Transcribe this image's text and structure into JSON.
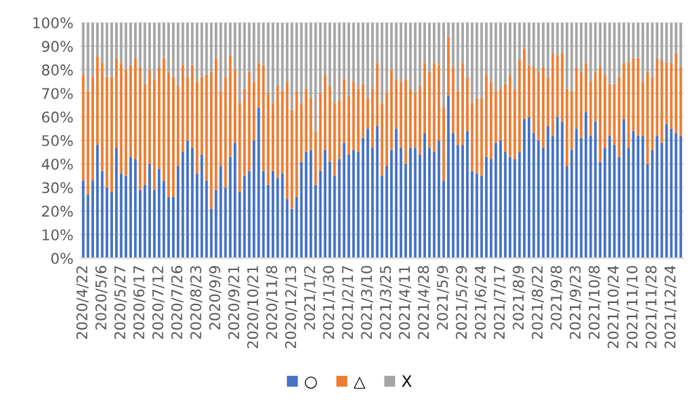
{
  "chart_data": {
    "type": "bar",
    "stacked": true,
    "categories": [
      "2020/4/22",
      null,
      null,
      null,
      "2020/5/6",
      null,
      null,
      null,
      "2020/5/27",
      null,
      null,
      null,
      "2020/6/17",
      null,
      null,
      null,
      "2020/7/12",
      null,
      null,
      null,
      "2020/7/26",
      null,
      null,
      null,
      "2020/8/23",
      null,
      null,
      null,
      "2020/9/9",
      null,
      null,
      null,
      "2020/9/21",
      null,
      null,
      null,
      "2020/10/21",
      null,
      null,
      null,
      "2020/11/8",
      null,
      null,
      null,
      "2020/12/13",
      null,
      null,
      null,
      "2021/1/2",
      null,
      null,
      null,
      "2021/1/30",
      null,
      null,
      null,
      "2021/2/17",
      null,
      null,
      null,
      "2021/3/10",
      null,
      null,
      null,
      "2021/3/25",
      null,
      null,
      null,
      "2021/4/11",
      null,
      null,
      null,
      "2021/4/28",
      null,
      null,
      null,
      "2021/5/9",
      null,
      null,
      null,
      "2021/5/29",
      null,
      null,
      null,
      "2021/6/24",
      null,
      null,
      null,
      "2021/7/17",
      null,
      null,
      null,
      "2021/8/9",
      null,
      null,
      null,
      "2021/8/22",
      null,
      null,
      null,
      "2021/9/8",
      null,
      null,
      null,
      "2021/9/23",
      null,
      null,
      null,
      "2021/10/8",
      null,
      null,
      null,
      "2021/10/24",
      null,
      null,
      null,
      "2021/11/10",
      null,
      null,
      null,
      "2021/11/28",
      null,
      null,
      null,
      "2021/12/24",
      null,
      null
    ],
    "series": [
      {
        "name": "○",
        "color": "#4472c4",
        "values": [
          33,
          27,
          33,
          48,
          37,
          30,
          28,
          47,
          36,
          35,
          43,
          42,
          29,
          31,
          40,
          29,
          38,
          33,
          26,
          26,
          39,
          45,
          50,
          47,
          36,
          44,
          33,
          21,
          29,
          39,
          30,
          43,
          49,
          28,
          35,
          37,
          50,
          64,
          37,
          31,
          37,
          34,
          36,
          25,
          21,
          26,
          41,
          45,
          46,
          31,
          37,
          46,
          41,
          35,
          42,
          49,
          44,
          46,
          45,
          51,
          55,
          47,
          56,
          35,
          39,
          46,
          55,
          47,
          40,
          47,
          47,
          44,
          53,
          47,
          45,
          50,
          33,
          69,
          53,
          48,
          48,
          54,
          37,
          36,
          35,
          43,
          42,
          49,
          50,
          45,
          43,
          42,
          45,
          59,
          60,
          53,
          50,
          47,
          56,
          52,
          60,
          58,
          39,
          46,
          55,
          51,
          62,
          52,
          58,
          41,
          47,
          52,
          48,
          43,
          59,
          47,
          54,
          52,
          52,
          40,
          46,
          52,
          49,
          57,
          55,
          53,
          52
        ]
      },
      {
        "name": "△",
        "color": "#ed7d31",
        "values": [
          45,
          44,
          44,
          38,
          46,
          47,
          49,
          38,
          47,
          45,
          39,
          43,
          52,
          43,
          40,
          47,
          43,
          52,
          53,
          51,
          34,
          37,
          27,
          35,
          39,
          33,
          45,
          58,
          56,
          32,
          47,
          43,
          31,
          38,
          37,
          42,
          25,
          19,
          45,
          39,
          29,
          39,
          35,
          50,
          42,
          45,
          25,
          27,
          22,
          23,
          33,
          32,
          32,
          31,
          25,
          27,
          25,
          29,
          27,
          23,
          13,
          25,
          27,
          31,
          31,
          34,
          21,
          28,
          36,
          25,
          23,
          29,
          30,
          32,
          38,
          32,
          31,
          25,
          28,
          23,
          35,
          23,
          29,
          32,
          33,
          35,
          33,
          22,
          22,
          29,
          35,
          30,
          39,
          30,
          22,
          28,
          29,
          34,
          21,
          35,
          26,
          29,
          33,
          25,
          26,
          28,
          21,
          23,
          21,
          40,
          31,
          22,
          26,
          34,
          24,
          36,
          31,
          33,
          23,
          39,
          31,
          33,
          35,
          26,
          28,
          34,
          29
        ]
      },
      {
        "name": "X",
        "color": "#a5a5a5",
        "values": [
          22,
          29,
          23,
          14,
          17,
          23,
          23,
          15,
          17,
          20,
          18,
          15,
          19,
          26,
          20,
          24,
          19,
          15,
          21,
          23,
          27,
          18,
          23,
          18,
          25,
          23,
          22,
          21,
          15,
          29,
          23,
          14,
          20,
          34,
          28,
          21,
          25,
          17,
          18,
          30,
          34,
          27,
          29,
          25,
          37,
          29,
          34,
          28,
          32,
          46,
          30,
          22,
          27,
          34,
          33,
          24,
          31,
          25,
          28,
          26,
          32,
          28,
          17,
          34,
          30,
          20,
          24,
          25,
          24,
          28,
          30,
          27,
          17,
          21,
          17,
          18,
          36,
          6,
          19,
          29,
          17,
          23,
          34,
          32,
          32,
          22,
          25,
          29,
          28,
          26,
          22,
          28,
          16,
          11,
          18,
          19,
          21,
          19,
          23,
          13,
          14,
          13,
          28,
          29,
          19,
          21,
          17,
          25,
          21,
          19,
          22,
          26,
          26,
          23,
          17,
          17,
          15,
          15,
          25,
          21,
          23,
          15,
          16,
          17,
          17,
          13,
          19
        ]
      }
    ],
    "ylim": [
      0,
      100
    ],
    "yticks": [
      {
        "value": 0,
        "label": "0%"
      },
      {
        "value": 10,
        "label": "10%"
      },
      {
        "value": 20,
        "label": "20%"
      },
      {
        "value": 30,
        "label": "30%"
      },
      {
        "value": 40,
        "label": "40%"
      },
      {
        "value": 50,
        "label": "50%"
      },
      {
        "value": 60,
        "label": "60%"
      },
      {
        "value": 70,
        "label": "70%"
      },
      {
        "value": 80,
        "label": "80%"
      },
      {
        "value": 90,
        "label": "90%"
      },
      {
        "value": 100,
        "label": "100%"
      }
    ],
    "grid": "y",
    "legend": "bottom"
  }
}
